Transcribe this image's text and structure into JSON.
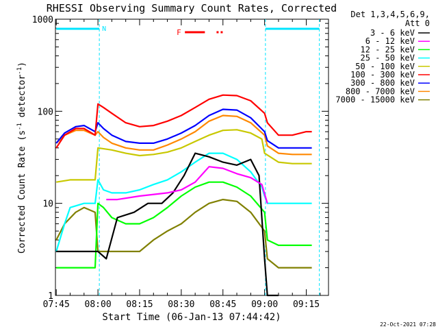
{
  "chart_data": {
    "type": "line",
    "title": "RHESSI Observing Summary Count Rates, Corrected",
    "xlabel": "Start Time (06-Jan-13 07:44:42)",
    "ylabel_main": "Corrected Count Rate (s",
    "ylabel_sup1": "-1",
    "ylabel_mid": " detector",
    "ylabel_sup2": "-1",
    "ylabel_end": ")",
    "x_ticks": [
      "07:45",
      "08:00",
      "08:15",
      "08:30",
      "08:45",
      "09:00",
      "09:15"
    ],
    "x_tick_minutes": [
      0,
      15,
      30,
      45,
      60,
      75,
      90
    ],
    "x_range_minutes": [
      -0.3,
      98
    ],
    "y_scale": "log",
    "y_ticks": [
      "1",
      "10",
      "100",
      "1000"
    ],
    "y_tick_values": [
      1,
      10,
      100,
      1000
    ],
    "ylim": [
      1,
      1000
    ],
    "grid": false,
    "legend_placement": "right",
    "legend_title": "Det 1,3,4,5,6,9,",
    "legend_subtitle": "Att 0",
    "series": [
      {
        "name": "3 - 6 keV",
        "color": "#000000",
        "x": [
          0,
          5,
          10,
          13,
          15,
          18,
          22,
          28,
          33,
          38,
          42,
          46,
          50,
          55,
          60,
          65,
          70,
          73,
          75,
          76,
          78,
          80
        ],
        "y": [
          3,
          3,
          3,
          3,
          3,
          2.5,
          7,
          8,
          10,
          10,
          13,
          20,
          35,
          32,
          28,
          26,
          30,
          20,
          2.5,
          1,
          1,
          1
        ]
      },
      {
        "name": "6 - 12 keV",
        "color": "#ff00ff",
        "x": [
          18,
          22,
          30,
          40,
          45,
          50,
          55,
          60,
          65,
          70,
          74,
          76
        ],
        "y": [
          11,
          11,
          12,
          13,
          14,
          17,
          25,
          24,
          21,
          19,
          16,
          10
        ]
      },
      {
        "name": "12 - 25 keV",
        "color": "#00ff00",
        "x": [
          0,
          5,
          10,
          14,
          15,
          17,
          20,
          25,
          30,
          35,
          40,
          45,
          50,
          55,
          60,
          65,
          70,
          75,
          76,
          80,
          85,
          90,
          92
        ],
        "y": [
          2,
          2,
          2,
          2,
          10,
          9,
          7,
          6,
          6,
          7,
          9,
          12,
          15,
          17,
          17,
          15,
          12,
          8,
          4,
          3.5,
          3.5,
          3.5,
          3.5
        ]
      },
      {
        "name": "25 - 50 keV",
        "color": "#00ffff",
        "x": [
          0,
          3,
          5,
          10,
          14,
          15,
          17,
          20,
          25,
          30,
          35,
          40,
          45,
          50,
          55,
          60,
          65,
          70,
          74,
          75,
          76,
          80,
          85,
          90,
          92
        ],
        "y": [
          3,
          6,
          9,
          10,
          10,
          18,
          14,
          13,
          13,
          14,
          16,
          18,
          22,
          28,
          35,
          35,
          30,
          22,
          15,
          12,
          10,
          10,
          10,
          10,
          10
        ]
      },
      {
        "name": "50 - 100 keV",
        "color": "#c8c800",
        "x": [
          0,
          5,
          10,
          14,
          15,
          20,
          25,
          30,
          35,
          40,
          45,
          50,
          55,
          60,
          65,
          70,
          74,
          75,
          80,
          85,
          90,
          92
        ],
        "y": [
          17,
          18,
          18,
          18,
          40,
          38,
          35,
          33,
          34,
          36,
          40,
          47,
          55,
          62,
          63,
          58,
          50,
          35,
          28,
          27,
          27,
          27
        ]
      },
      {
        "name": "100 - 300 keV",
        "color": "#ff0000",
        "x": [
          0,
          3,
          7,
          10,
          14,
          15,
          17,
          20,
          25,
          30,
          35,
          40,
          45,
          50,
          55,
          60,
          65,
          70,
          75,
          76,
          80,
          85,
          90,
          92
        ],
        "y": [
          40,
          55,
          65,
          65,
          55,
          120,
          110,
          95,
          75,
          68,
          70,
          78,
          90,
          110,
          135,
          150,
          148,
          130,
          95,
          75,
          55,
          55,
          60,
          60
        ]
      },
      {
        "name": "300 - 800 keV",
        "color": "#0000ff",
        "x": [
          0,
          3,
          7,
          10,
          14,
          15,
          17,
          20,
          25,
          30,
          35,
          40,
          45,
          50,
          55,
          60,
          65,
          70,
          75,
          76,
          80,
          85,
          90,
          92
        ],
        "y": [
          45,
          58,
          68,
          70,
          60,
          75,
          65,
          55,
          47,
          45,
          45,
          50,
          58,
          70,
          90,
          105,
          103,
          85,
          60,
          48,
          40,
          40,
          40,
          40
        ]
      },
      {
        "name": "800 - 7000 keV",
        "color": "#ff8800",
        "x": [
          0,
          3,
          7,
          10,
          14,
          15,
          17,
          20,
          25,
          30,
          35,
          40,
          45,
          50,
          55,
          60,
          65,
          70,
          75,
          76,
          80,
          85,
          90,
          92
        ],
        "y": [
          45,
          55,
          62,
          62,
          55,
          60,
          52,
          45,
          40,
          38,
          38,
          43,
          50,
          60,
          78,
          90,
          88,
          75,
          55,
          42,
          35,
          34,
          34,
          34
        ]
      },
      {
        "name": "7000 - 15000 keV",
        "color": "#808000",
        "x": [
          0,
          3,
          7,
          10,
          14,
          15,
          17,
          20,
          25,
          30,
          35,
          40,
          45,
          50,
          55,
          60,
          65,
          70,
          75,
          76,
          80,
          85,
          90,
          92
        ],
        "y": [
          4,
          6,
          8,
          9,
          8,
          3,
          3,
          3,
          3,
          3,
          4,
          5,
          6,
          8,
          10,
          11,
          10.5,
          8,
          5,
          2.5,
          2,
          2,
          2,
          2
        ]
      }
    ],
    "attenuator_segments": [
      {
        "x": [
          0,
          15.5
        ]
      },
      {
        "x": [
          75.3,
          94.7
        ]
      }
    ],
    "attenuator_label": "N",
    "flare_label": "F",
    "flare_segments": [
      {
        "x": [
          46.3,
          53.5
        ]
      },
      {
        "x": [
          57.7,
          60.2
        ]
      }
    ],
    "cyan_event_lines": [
      15.5,
      75.3,
      94.7
    ]
  },
  "footer": {
    "timestamp": "22-Oct-2021 07:28"
  }
}
